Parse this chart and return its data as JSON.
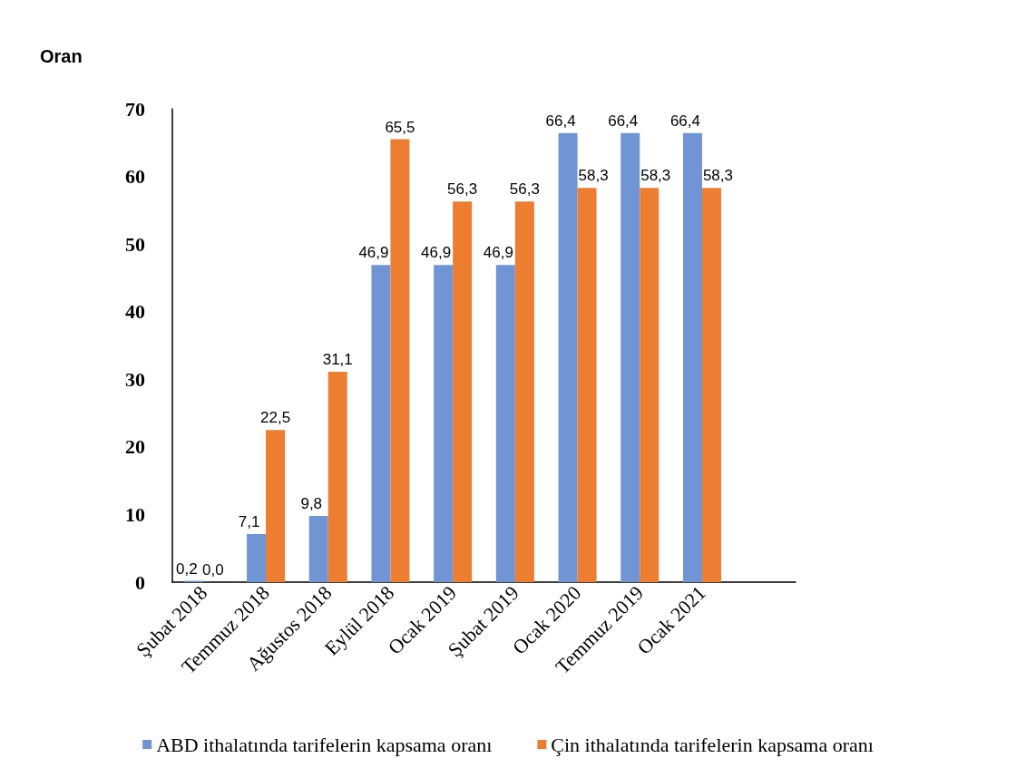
{
  "chart_data": {
    "type": "bar",
    "ylabel": "Oran",
    "categories": [
      "Şubat 2018",
      "Temmuz 2018",
      "Ağustos 2018",
      "Eylül 2018",
      "Ocak 2019",
      "Şubat 2019",
      "Ocak 2020",
      "Temmuz 2019",
      "Ocak 2021",
      null
    ],
    "series": [
      {
        "name": "ABD ithalatında tarifelerin kapsama oranı",
        "color": "#7094d4",
        "values": [
          0.2,
          7.1,
          9.8,
          46.9,
          46.9,
          46.9,
          66.4,
          66.4,
          66.4,
          null
        ],
        "value_labels": [
          "0,2",
          "7,1",
          "9,8",
          "46,9",
          "46,9",
          "46,9",
          "66,4",
          "66,4",
          "66,4",
          null
        ]
      },
      {
        "name": "Çin ithalatında tarifelerin kapsama oranı",
        "color": "#ed7d31",
        "values": [
          0.0,
          22.5,
          31.1,
          65.5,
          56.3,
          56.3,
          58.3,
          58.3,
          58.3,
          null
        ],
        "value_labels": [
          "0,0",
          "22,5",
          "31,1",
          "65,5",
          "56,3",
          "56,3",
          "58,3",
          "58,3",
          "58,3",
          null
        ]
      }
    ],
    "ylim": [
      0,
      70
    ],
    "yticks": [
      0,
      10,
      20,
      30,
      40,
      50,
      60,
      70
    ],
    "grid": false,
    "legend": "bottom"
  }
}
